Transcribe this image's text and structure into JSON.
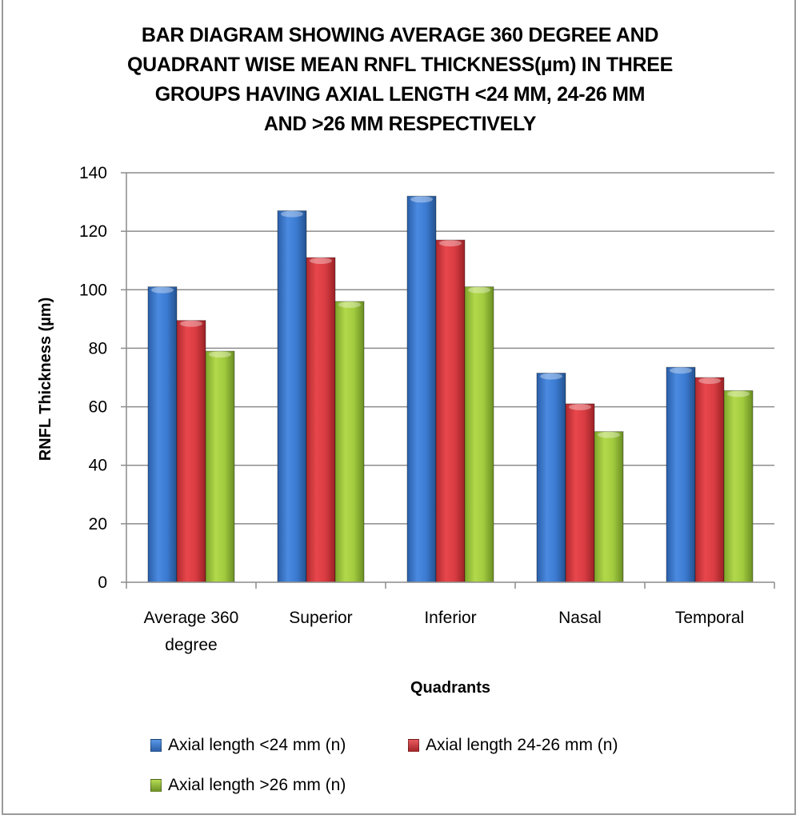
{
  "chart_data": {
    "type": "bar",
    "title_lines": [
      "BAR DIAGRAM SHOWING AVERAGE 360 DEGREE AND",
      "QUADRANT WISE  MEAN RNFL THICKNESS(µm) IN THREE",
      "GROUPS HAVING AXIAL LENGTH <24 MM, 24-26 MM",
      "AND >26 MM RESPECTIVELY"
    ],
    "xlabel": "Quadrants",
    "ylabel": "RNFL Thickness (µm)",
    "ylim": [
      0,
      140
    ],
    "yticks": [
      0,
      20,
      40,
      60,
      80,
      100,
      120,
      140
    ],
    "grid": true,
    "legend_position": "bottom",
    "categories": [
      [
        "Average 360",
        "degree"
      ],
      [
        "Superior"
      ],
      [
        "Inferior"
      ],
      [
        "Nasal"
      ],
      [
        "Temporal"
      ]
    ],
    "series": [
      {
        "name": "Axial length <24 mm (n)",
        "color": "#3a78c9",
        "values": [
          101,
          127,
          132,
          71.5,
          73.5
        ]
      },
      {
        "name": "Axial length 24-26 mm (n)",
        "color": "#d83a3f",
        "values": [
          89.5,
          111,
          117,
          61,
          70
        ]
      },
      {
        "name": "Axial length >26 mm (n)",
        "color": "#9ac53a",
        "values": [
          79,
          96,
          101,
          51.5,
          65.5
        ]
      }
    ]
  }
}
